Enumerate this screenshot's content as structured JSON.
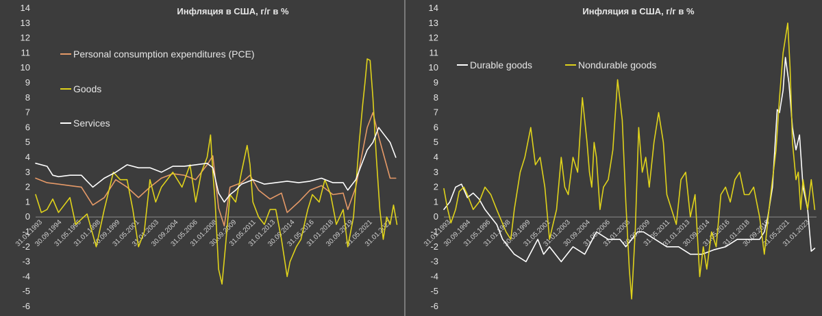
{
  "chart_data": [
    {
      "type": "line",
      "title": "Инфляция в США, г/г в %",
      "ylim": [
        -6,
        14
      ],
      "yticks": [
        -6,
        -5,
        -4,
        -3,
        -2,
        -1,
        0,
        1,
        2,
        3,
        4,
        5,
        6,
        7,
        8,
        9,
        10,
        11,
        12,
        13,
        14
      ],
      "xlim": [
        1993.0,
        2024.75
      ],
      "xtick_labels": [
        "31.01.1993",
        "30.09.1994",
        "31.05.1996",
        "31.01.1998",
        "30.09.1999",
        "31.05.2001",
        "31.01.2003",
        "30.09.2004",
        "31.05.2006",
        "31.01.2008",
        "30.09.2009",
        "31.05.2011",
        "31.01.2013",
        "30.09.2014",
        "31.05.2016",
        "31.01.2018",
        "30.09.2019",
        "31.05.2021",
        "31.01.2023"
      ],
      "grid": false,
      "legend": "left",
      "series": [
        {
          "name": "Personal consumption expenditures (PCE)",
          "color": "#e69a68",
          "x": [
            1993.0,
            1994.0,
            1995.0,
            1996.0,
            1997.0,
            1998.0,
            1999.0,
            2000.0,
            2001.0,
            2002.0,
            2003.0,
            2004.0,
            2005.0,
            2006.0,
            2007.0,
            2008.0,
            2008.5,
            2009.0,
            2009.5,
            2010.0,
            2011.0,
            2011.75,
            2012.5,
            2013.5,
            2014.5,
            2015.0,
            2016.0,
            2017.0,
            2018.0,
            2019.0,
            2019.9,
            2020.3,
            2021.0,
            2021.5,
            2022.0,
            2022.5,
            2023.0,
            2023.5,
            2024.0,
            2024.5
          ],
          "values": [
            2.6,
            2.3,
            2.2,
            2.1,
            2.0,
            0.8,
            1.3,
            2.5,
            2.0,
            1.3,
            2.0,
            2.6,
            2.9,
            2.8,
            2.5,
            3.5,
            4.1,
            0.6,
            -0.6,
            2.0,
            2.3,
            2.8,
            1.8,
            1.2,
            1.6,
            0.3,
            1.0,
            1.8,
            2.1,
            1.5,
            1.6,
            0.5,
            2.0,
            4.0,
            6.0,
            7.0,
            5.4,
            4.0,
            2.6,
            2.6
          ]
        },
        {
          "name": "Goods",
          "color": "#e0d31b",
          "x": [
            1993.0,
            1993.5,
            1994.0,
            1994.5,
            1995.0,
            1996.0,
            1996.5,
            1997.5,
            1998.3,
            1999.0,
            1999.8,
            2000.4,
            2001.0,
            2001.5,
            2002.0,
            2002.5,
            2003.0,
            2003.5,
            2004.0,
            2004.5,
            2005.0,
            2005.8,
            2006.5,
            2007.0,
            2007.5,
            2008.0,
            2008.3,
            2008.5,
            2008.7,
            2009.0,
            2009.3,
            2009.6,
            2010.0,
            2010.5,
            2011.0,
            2011.5,
            2011.75,
            2012.0,
            2012.5,
            2013.0,
            2013.5,
            2014.0,
            2014.5,
            2015.0,
            2015.25,
            2015.8,
            2016.2,
            2016.8,
            2017.2,
            2017.8,
            2018.3,
            2018.8,
            2019.3,
            2019.9,
            2020.3,
            2020.8,
            2021.0,
            2021.3,
            2021.6,
            2021.8,
            2022.0,
            2022.25,
            2022.5,
            2022.8,
            2023.1,
            2023.4,
            2023.7,
            2024.0,
            2024.3,
            2024.6
          ],
          "values": [
            1.5,
            0.3,
            0.5,
            1.2,
            0.3,
            1.3,
            -0.5,
            0.2,
            -2.0,
            0.5,
            3.0,
            2.5,
            2.5,
            0.5,
            -2.0,
            -1.0,
            2.5,
            1.0,
            2.0,
            2.5,
            3.0,
            2.0,
            3.5,
            1.0,
            3.0,
            4.0,
            5.5,
            3.0,
            1.0,
            -3.5,
            -4.5,
            -2.0,
            1.5,
            1.0,
            3.0,
            4.8,
            3.5,
            1.0,
            0.0,
            -0.5,
            0.5,
            0.5,
            -1.5,
            -4.0,
            -3.0,
            -2.0,
            -1.5,
            0.5,
            1.5,
            1.0,
            2.5,
            1.5,
            -0.5,
            0.5,
            -2.0,
            0.0,
            2.0,
            5.0,
            7.5,
            9.0,
            10.6,
            10.5,
            8.0,
            4.0,
            0.5,
            -1.5,
            0.0,
            -0.5,
            0.8,
            -0.5
          ]
        },
        {
          "name": "Services",
          "color": "#ffffff",
          "x": [
            1993.0,
            1994.0,
            1994.5,
            1995.0,
            1996.0,
            1997.0,
            1998.0,
            1998.5,
            1999.0,
            2000.0,
            2001.0,
            2002.0,
            2003.0,
            2004.0,
            2005.0,
            2006.0,
            2007.0,
            2008.0,
            2008.5,
            2009.0,
            2009.5,
            2010.0,
            2010.5,
            2011.0,
            2012.0,
            2013.0,
            2014.0,
            2015.0,
            2016.0,
            2017.0,
            2018.0,
            2019.0,
            2019.9,
            2020.3,
            2021.0,
            2021.5,
            2022.0,
            2022.5,
            2023.0,
            2023.5,
            2024.0,
            2024.5
          ],
          "values": [
            3.6,
            3.4,
            2.8,
            2.7,
            2.8,
            2.8,
            2.0,
            2.3,
            2.6,
            3.0,
            3.5,
            3.3,
            3.3,
            3.0,
            3.4,
            3.4,
            3.5,
            3.6,
            3.3,
            1.6,
            1.0,
            1.5,
            1.8,
            2.2,
            2.5,
            2.2,
            2.3,
            2.4,
            2.3,
            2.4,
            2.6,
            2.3,
            2.3,
            1.8,
            2.5,
            3.5,
            4.5,
            5.0,
            6.0,
            5.5,
            5.0,
            4.0
          ]
        }
      ]
    },
    {
      "type": "line",
      "title": "Инфляция в США, г/г в %",
      "ylim": [
        -6,
        14
      ],
      "yticks": [
        -6,
        -5,
        -4,
        -3,
        -2,
        -1,
        0,
        1,
        2,
        3,
        4,
        5,
        6,
        7,
        8,
        9,
        10,
        11,
        12,
        13,
        14
      ],
      "xlim": [
        1993.0,
        2024.75
      ],
      "xtick_labels": [
        "31.01.1993",
        "30.09.1994",
        "31.05.1996",
        "31.01.1998",
        "30.09.1999",
        "31.05.2001",
        "31.01.2003",
        "30.09.2004",
        "31.05.2006",
        "31.01.2008",
        "30.09.2009",
        "31.05.2011",
        "31.01.2013",
        "30.09.2014",
        "31.05.2016",
        "31.01.2018",
        "30.09.2019",
        "31.05.2021",
        "31.01.2023"
      ],
      "grid": false,
      "legend": "top-left",
      "series": [
        {
          "name": "Durable goods",
          "color": "#ffffff",
          "x": [
            1993.0,
            1993.5,
            1994.0,
            1994.5,
            1995.0,
            1995.5,
            1996.0,
            1996.5,
            1997.0,
            1997.5,
            1998.0,
            1999.0,
            2000.0,
            2001.0,
            2001.5,
            2002.0,
            2003.0,
            2004.0,
            2005.0,
            2006.0,
            2007.0,
            2008.0,
            2008.5,
            2009.0,
            2009.5,
            2010.0,
            2011.0,
            2012.0,
            2013.0,
            2014.0,
            2015.0,
            2016.0,
            2017.0,
            2018.0,
            2019.0,
            2019.9,
            2020.3,
            2020.6,
            2021.0,
            2021.4,
            2021.6,
            2021.9,
            2022.1,
            2022.4,
            2022.7,
            2023.0,
            2023.3,
            2023.6,
            2024.0,
            2024.3,
            2024.6
          ],
          "values": [
            0.5,
            1.0,
            2.0,
            2.2,
            1.3,
            1.6,
            1.2,
            0.5,
            0.0,
            -0.5,
            -1.5,
            -2.5,
            -3.0,
            -1.5,
            -2.5,
            -2.0,
            -3.0,
            -2.0,
            -2.5,
            -1.0,
            -1.5,
            -1.5,
            -2.0,
            -1.5,
            -1.0,
            -1.0,
            -1.5,
            -2.0,
            -2.0,
            -2.5,
            -2.5,
            -2.2,
            -2.0,
            -1.5,
            -1.5,
            -1.5,
            -1.0,
            0.0,
            2.0,
            7.2,
            7.0,
            8.5,
            10.7,
            9.0,
            6.0,
            4.5,
            5.5,
            2.0,
            0.5,
            -2.3,
            -2.1
          ]
        },
        {
          "name": "Nondurable goods",
          "color": "#e0d31b",
          "x": [
            1993.0,
            1993.3,
            1993.6,
            1994.0,
            1994.3,
            1994.7,
            1995.0,
            1995.5,
            1996.0,
            1996.5,
            1997.0,
            1997.5,
            1998.3,
            1998.7,
            1999.0,
            1999.5,
            1999.9,
            2000.4,
            2000.8,
            2001.2,
            2001.6,
            2002.0,
            2002.3,
            2002.6,
            2003.0,
            2003.3,
            2003.6,
            2004.0,
            2004.4,
            2004.8,
            2005.2,
            2005.4,
            2005.6,
            2005.8,
            2006.0,
            2006.3,
            2006.6,
            2007.0,
            2007.4,
            2007.8,
            2008.2,
            2008.5,
            2008.8,
            2009.0,
            2009.3,
            2009.6,
            2009.9,
            2010.2,
            2010.5,
            2010.9,
            2011.3,
            2011.7,
            2012.0,
            2012.4,
            2012.8,
            2013.2,
            2013.6,
            2014.0,
            2014.4,
            2014.8,
            2015.1,
            2015.4,
            2015.8,
            2016.2,
            2016.6,
            2017.0,
            2017.4,
            2017.8,
            2018.2,
            2018.6,
            2019.0,
            2019.4,
            2019.9,
            2020.3,
            2020.7,
            2021.0,
            2021.3,
            2021.6,
            2021.9,
            2022.1,
            2022.3,
            2022.5,
            2022.7,
            2023.0,
            2023.2,
            2023.4,
            2023.6,
            2023.8,
            2024.0,
            2024.3,
            2024.6
          ],
          "values": [
            1.9,
            0.6,
            -0.4,
            0.5,
            1.7,
            2.0,
            1.5,
            0.5,
            1.0,
            2.0,
            1.5,
            0.5,
            -1.0,
            -1.5,
            0.5,
            3.0,
            4.0,
            6.0,
            3.5,
            4.0,
            2.0,
            -1.5,
            -0.5,
            0.5,
            4.0,
            2.0,
            1.5,
            4.0,
            3.0,
            8.0,
            5.0,
            3.0,
            2.0,
            5.0,
            4.0,
            0.5,
            2.0,
            2.5,
            4.5,
            9.2,
            6.5,
            1.0,
            -3.5,
            -5.5,
            -1.0,
            6.0,
            3.0,
            4.0,
            2.0,
            5.0,
            7.0,
            5.0,
            1.5,
            0.5,
            -0.5,
            2.5,
            3.0,
            0.0,
            1.5,
            -4.0,
            -2.0,
            -3.5,
            -1.0,
            -2.0,
            1.5,
            2.0,
            1.0,
            2.5,
            3.0,
            1.5,
            1.5,
            2.0,
            0.0,
            -2.5,
            0.5,
            2.5,
            4.5,
            8.0,
            11.0,
            12.0,
            13.0,
            10.0,
            5.0,
            2.5,
            3.0,
            0.5,
            2.5,
            1.5,
            0.5,
            2.5,
            0.5
          ]
        }
      ]
    }
  ]
}
